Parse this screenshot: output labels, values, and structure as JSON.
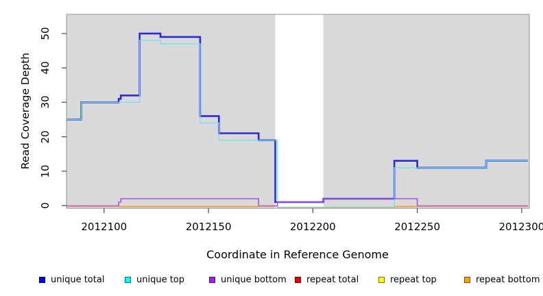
{
  "chart_data": {
    "type": "line",
    "step": true,
    "title": "",
    "xlabel": "Coordinate in Reference Genome",
    "ylabel": "Read Coverage Depth",
    "xlim": [
      2012082,
      2012303
    ],
    "ylim": [
      0,
      55
    ],
    "x_ticks": [
      "2012100",
      "2012150",
      "2012200",
      "2012250",
      "2012300"
    ],
    "x_tick_values": [
      2012100,
      2012150,
      2012200,
      2012250,
      2012300
    ],
    "y_ticks": [
      "0",
      "10",
      "20",
      "30",
      "40",
      "50"
    ],
    "y_tick_values": [
      0,
      10,
      20,
      30,
      40,
      50
    ],
    "grid": false,
    "plot_background": "#d9d9d9",
    "plot_border_color": "#8f8f8f",
    "highlight_band": {
      "x0": 2012182,
      "x1": 2012205,
      "color": "#ffffff"
    },
    "series": [
      {
        "name": "unique total",
        "color": "#2b2bd5",
        "width": 2.6,
        "points": [
          [
            2012082,
            25
          ],
          [
            2012089,
            30
          ],
          [
            2012107,
            31
          ],
          [
            2012108,
            32
          ],
          [
            2012117,
            50
          ],
          [
            2012127,
            49
          ],
          [
            2012146,
            26
          ],
          [
            2012155,
            21
          ],
          [
            2012174,
            19
          ],
          [
            2012182,
            1
          ],
          [
            2012205,
            2
          ],
          [
            2012239,
            13
          ],
          [
            2012250,
            11
          ],
          [
            2012283,
            13
          ],
          [
            2012303,
            13
          ]
        ]
      },
      {
        "name": "unique top",
        "color": "#74e2f2",
        "width": 1.4,
        "points": [
          [
            2012082,
            25
          ],
          [
            2012089,
            30
          ],
          [
            2012117,
            48
          ],
          [
            2012127,
            47
          ],
          [
            2012146,
            24
          ],
          [
            2012155,
            19
          ],
          [
            2012183,
            0
          ],
          [
            2012239,
            11
          ],
          [
            2012283,
            13
          ],
          [
            2012303,
            13
          ]
        ]
      },
      {
        "name": "unique bottom",
        "color": "#a453e6",
        "width": 1.6,
        "points": [
          [
            2012082,
            0
          ],
          [
            2012107,
            1
          ],
          [
            2012108,
            2
          ],
          [
            2012174,
            0
          ],
          [
            2012183,
            1
          ],
          [
            2012205,
            2
          ],
          [
            2012250,
            0
          ],
          [
            2012303,
            0
          ]
        ]
      },
      {
        "name": "repeat total",
        "color": "#d4608c",
        "width": 1.6,
        "points": [
          [
            2012082,
            0
          ],
          [
            2012303,
            0
          ]
        ]
      },
      {
        "name": "repeat top",
        "color": "#ffff00",
        "width": 1.4,
        "points": [
          [
            2012082,
            0
          ],
          [
            2012303,
            0
          ]
        ]
      },
      {
        "name": "repeat bottom",
        "color": "#ff9d33",
        "width": 1.8,
        "points": [
          [
            2012082,
            0
          ],
          [
            2012303,
            0
          ]
        ]
      }
    ],
    "baseline_render": [
      {
        "x0": 2012082,
        "x1": 2012107,
        "color": "#d4608c",
        "level": "zero"
      },
      {
        "x0": 2012107,
        "x1": 2012174,
        "color": "#ff9d33",
        "level": "zero-low"
      },
      {
        "x0": 2012174,
        "x1": 2012183,
        "color": "#d4608c",
        "level": "zero"
      },
      {
        "x0": 2012183,
        "x1": 2012239,
        "color": "#9cd89c",
        "level": "zero-lower"
      },
      {
        "x0": 2012239,
        "x1": 2012250,
        "color": "#ff9d33",
        "level": "zero-low"
      },
      {
        "x0": 2012250,
        "x1": 2012303,
        "color": "#d4608c",
        "level": "zero"
      }
    ]
  },
  "legend": [
    {
      "label": "unique total",
      "color": "#0000ee"
    },
    {
      "label": "unique top",
      "color": "#00ffff"
    },
    {
      "label": "unique bottom",
      "color": "#a020f0"
    },
    {
      "label": "repeat total",
      "color": "#ee0000"
    },
    {
      "label": "repeat top",
      "color": "#ffff00"
    },
    {
      "label": "repeat bottom",
      "color": "#ffa500"
    }
  ]
}
